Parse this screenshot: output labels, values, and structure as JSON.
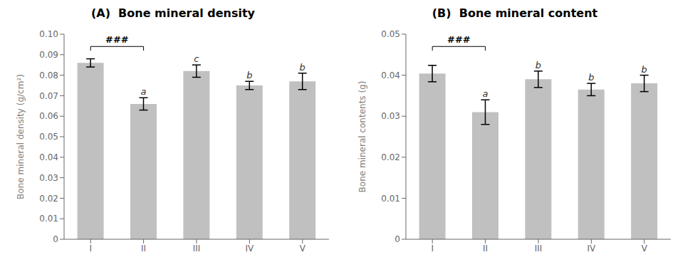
{
  "chart_data": [
    {
      "type": "bar",
      "title": "(A)  Bone mineral density",
      "ylabel": "Bone mineral density (g/cm²)",
      "categories": [
        "I",
        "II",
        "III",
        "IV",
        "V"
      ],
      "values": [
        0.086,
        0.066,
        0.082,
        0.075,
        0.077
      ],
      "errors": [
        0.002,
        0.003,
        0.003,
        0.002,
        0.004
      ],
      "letters": [
        null,
        "a",
        "c",
        "b",
        "b"
      ],
      "color": "#C0C0C0",
      "ylim": [
        0,
        0.1
      ],
      "yticks": [
        0,
        0.01,
        0.02,
        0.03,
        0.04,
        0.05,
        0.06,
        0.07,
        0.08,
        0.09,
        {
          "value": 0.1,
          "label": "0.10"
        }
      ],
      "grid": false,
      "annotations": [
        {
          "text": "###",
          "x1": "I",
          "x2": "II",
          "y": 0.094
        }
      ]
    },
    {
      "type": "bar",
      "title": "(B)  Bone mineral content",
      "ylabel": "Bone mineral contents (g)",
      "categories": [
        "I",
        "II",
        "III",
        "IV",
        "V"
      ],
      "values": [
        0.0404,
        0.031,
        0.039,
        0.0365,
        0.038
      ],
      "errors": [
        0.002,
        0.003,
        0.002,
        0.0015,
        0.002
      ],
      "letters": [
        null,
        "a",
        "b",
        "b",
        "b"
      ],
      "color": "#C0C0C0",
      "ylim": [
        0,
        0.05
      ],
      "yticks": [
        0,
        0.01,
        0.02,
        0.03,
        0.04,
        0.05
      ],
      "grid": false,
      "annotations": [
        {
          "text": "###",
          "x1": "I",
          "x2": "II",
          "y": 0.047
        }
      ]
    }
  ]
}
